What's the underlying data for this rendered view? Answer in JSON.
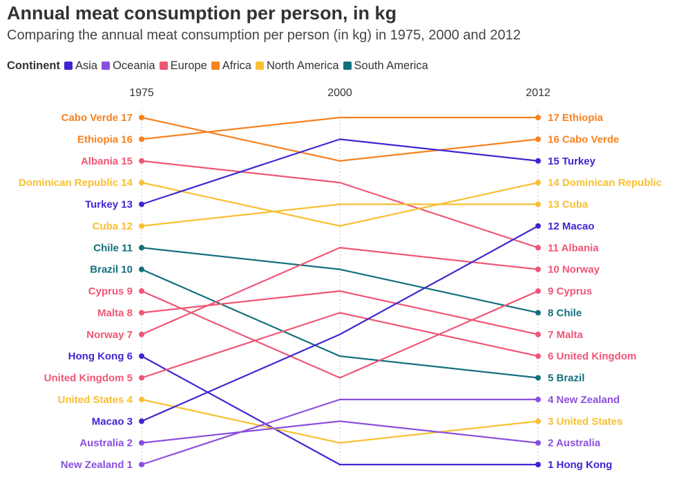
{
  "title": "Annual meat consumption per person, in kg",
  "subtitle": "Comparing the annual meat consumption per person (in kg) in 1975, 2000 and 2012",
  "legend": {
    "title": "Continent",
    "items": [
      {
        "label": "Asia",
        "color": "#3d26d1"
      },
      {
        "label": "Oceania",
        "color": "#8b4fde"
      },
      {
        "label": "Europe",
        "color": "#ef5675"
      },
      {
        "label": "Africa",
        "color": "#f7821f"
      },
      {
        "label": "North America",
        "color": "#f8bf31"
      },
      {
        "label": "South America",
        "color": "#12707c"
      }
    ]
  },
  "chart_data": {
    "type": "line",
    "chart_kind": "slope / bump chart of ranks",
    "x": [
      "1975",
      "2000",
      "2012"
    ],
    "ylim": [
      1,
      17
    ],
    "grid": "vertical dotted lines at each year",
    "series": [
      {
        "name": "Cabo Verde",
        "continent": "Africa",
        "color": "#f7821f",
        "values": [
          17,
          15,
          16
        ]
      },
      {
        "name": "Ethiopia",
        "continent": "Africa",
        "color": "#f7821f",
        "values": [
          16,
          17,
          17
        ]
      },
      {
        "name": "Albania",
        "continent": "Europe",
        "color": "#ef5675",
        "values": [
          15,
          14,
          11
        ]
      },
      {
        "name": "Dominican Republic",
        "continent": "North America",
        "color": "#f8bf31",
        "values": [
          14,
          12,
          14
        ]
      },
      {
        "name": "Turkey",
        "continent": "Asia",
        "color": "#3d26d1",
        "values": [
          13,
          16,
          15
        ]
      },
      {
        "name": "Cuba",
        "continent": "North America",
        "color": "#f8bf31",
        "values": [
          12,
          13,
          13
        ]
      },
      {
        "name": "Chile",
        "continent": "South America",
        "color": "#12707c",
        "values": [
          11,
          10,
          8
        ]
      },
      {
        "name": "Brazil",
        "continent": "South America",
        "color": "#12707c",
        "values": [
          10,
          6,
          5
        ]
      },
      {
        "name": "Cyprus",
        "continent": "Europe",
        "color": "#ef5675",
        "values": [
          9,
          5,
          9
        ]
      },
      {
        "name": "Malta",
        "continent": "Europe",
        "color": "#ef5675",
        "values": [
          8,
          9,
          7
        ]
      },
      {
        "name": "Norway",
        "continent": "Europe",
        "color": "#ef5675",
        "values": [
          7,
          11,
          10
        ]
      },
      {
        "name": "Hong Kong",
        "continent": "Asia",
        "color": "#3d26d1",
        "values": [
          6,
          1,
          1
        ]
      },
      {
        "name": "United Kingdom",
        "continent": "Europe",
        "color": "#ef5675",
        "values": [
          5,
          8,
          6
        ]
      },
      {
        "name": "United States",
        "continent": "North America",
        "color": "#f8bf31",
        "values": [
          4,
          2,
          3
        ]
      },
      {
        "name": "Macao",
        "continent": "Asia",
        "color": "#3d26d1",
        "values": [
          3,
          7,
          12
        ]
      },
      {
        "name": "Australia",
        "continent": "Oceania",
        "color": "#8b4fde",
        "values": [
          2,
          3,
          2
        ]
      },
      {
        "name": "New Zealand",
        "continent": "Oceania",
        "color": "#8b4fde",
        "values": [
          1,
          4,
          4
        ]
      }
    ]
  }
}
